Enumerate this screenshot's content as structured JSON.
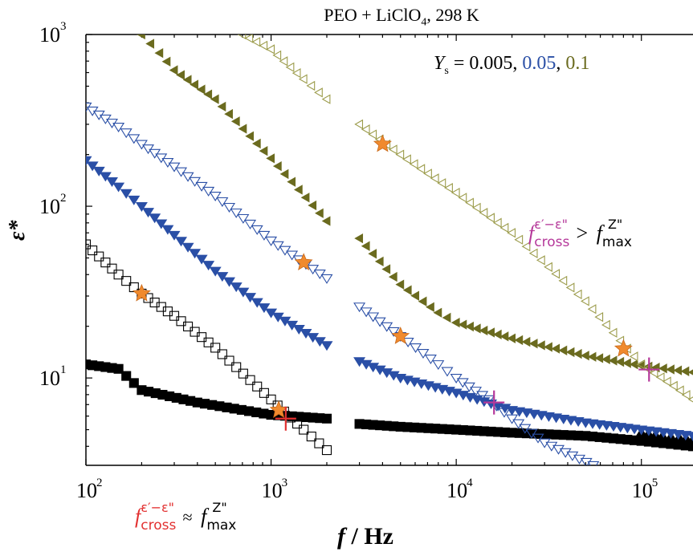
{
  "chart_data": {
    "type": "scatter",
    "title": "PEO + LiClO4, 298 K",
    "title_main": "PEO + LiClO",
    "title_sub": "4",
    "title_tail": ", 298 K",
    "xlabel": "f / Hz",
    "xlabel_var": "f",
    "xlabel_unit": " / Hz",
    "ylabel": "ε*",
    "x_scale": "log",
    "y_scale": "log",
    "xlim": [
      100,
      190000
    ],
    "ylim": [
      3.1,
      1000
    ],
    "x_tick_labels": [
      "10",
      "10",
      "10",
      "10"
    ],
    "x_tick_exponents": [
      "2",
      "3",
      "4",
      "5"
    ],
    "y_tick_labels": [
      "10",
      "10",
      "10"
    ],
    "y_tick_exponents": [
      "1",
      "2",
      "3"
    ],
    "grid": false,
    "legend_note": {
      "ys_symbol": "Y",
      "ys_sub": "s",
      "eq": " = 0.005, ",
      "values": [
        "0.005",
        "0.05",
        "0.1"
      ],
      "sep1": ", ",
      "v2": "0.05",
      "v3": "0.1",
      "colors": [
        "#000000",
        "#2a4fa6",
        "#6b6b1f"
      ]
    },
    "annotations": [
      {
        "f": "f",
        "sub": "cross",
        "sup": "ε′−ε\"",
        "rel": "≈",
        "f2": "f",
        "sub2": "max",
        "sup2": "Z\"",
        "color": "#e23030"
      },
      {
        "f": "f",
        "sub": "cross",
        "sup": "ε′−ε\"",
        "rel": ">",
        "f2": "f",
        "sub2": "max",
        "sup2": "Z\"",
        "color": "#b5389a"
      }
    ],
    "series": [
      {
        "ys": "0.005",
        "segment": "low-f",
        "filled": true,
        "marker": "square",
        "color": "#000000",
        "x": [
          100,
          150,
          200,
          400,
          1000,
          2000
        ],
        "y": [
          12,
          11.3,
          8.5,
          7.2,
          6.1,
          5.8
        ]
      },
      {
        "ys": "0.005",
        "segment": "low-f",
        "filled": false,
        "marker": "square",
        "color": "#000000",
        "x": [
          100,
          150,
          200,
          300,
          500,
          1000,
          1500,
          2000
        ],
        "y": [
          60,
          40,
          31,
          23,
          15,
          7.5,
          5,
          3.8
        ]
      },
      {
        "ys": "0.05",
        "segment": "low-f",
        "filled": true,
        "marker": "triangle-down",
        "color": "#2a4fa6",
        "x": [
          100,
          150,
          200,
          300,
          500,
          1000,
          2000
        ],
        "y": [
          185,
          130,
          100,
          68,
          42,
          24,
          15.5
        ]
      },
      {
        "ys": "0.05",
        "segment": "low-f",
        "filled": false,
        "marker": "triangle-down",
        "color": "#2a4fa6",
        "x": [
          100,
          150,
          200,
          300,
          500,
          1000,
          2000
        ],
        "y": [
          380,
          290,
          230,
          170,
          115,
          63,
          38
        ]
      },
      {
        "ys": "0.1",
        "segment": "low-f",
        "filled": true,
        "marker": "triangle-left",
        "color": "#6b6b1f",
        "x": [
          200,
          250,
          300,
          500,
          1000,
          2000
        ],
        "y": [
          1000,
          780,
          620,
          420,
          190,
          82
        ]
      },
      {
        "ys": "0.1",
        "segment": "low-f",
        "filled": false,
        "marker": "triangle-left",
        "color": "#9b9b4a",
        "x": [
          700,
          1000,
          1500,
          2000
        ],
        "y": [
          1000,
          820,
          550,
          420
        ]
      },
      {
        "ys": "0.005",
        "segment": "high-f",
        "filled": true,
        "marker": "square",
        "color": "#000000",
        "x": [
          3000,
          5000,
          10000,
          20000,
          50000,
          100000,
          190000
        ],
        "y": [
          5.4,
          5.2,
          5.0,
          4.8,
          4.6,
          4.3,
          4.0
        ]
      },
      {
        "ys": "0.005",
        "segment": "high-f",
        "filled": true,
        "marker": "triangle-up",
        "color": "#000000",
        "x": [
          100000,
          130000,
          160000,
          190000
        ],
        "y": [
          4.8,
          4.6,
          4.5,
          4.4
        ]
      },
      {
        "ys": "0.05",
        "segment": "high-f",
        "filled": true,
        "marker": "triangle-down",
        "color": "#2a4fa6",
        "x": [
          3000,
          5000,
          10000,
          20000,
          50000,
          100000,
          190000
        ],
        "y": [
          12.5,
          10,
          8.2,
          6.5,
          5.5,
          5.0,
          4.6
        ]
      },
      {
        "ys": "0.05",
        "segment": "high-f",
        "filled": false,
        "marker": "triangle-down",
        "color": "#2a4fa6",
        "x": [
          3000,
          5000,
          8000,
          10000,
          15000,
          20000,
          30000,
          55000
        ],
        "y": [
          26,
          17.5,
          12,
          10,
          7.5,
          5.8,
          4.2,
          3.1
        ]
      },
      {
        "ys": "0.1",
        "segment": "high-f",
        "filled": true,
        "marker": "triangle-left",
        "color": "#6b6b1f",
        "x": [
          3000,
          5000,
          8000,
          10000,
          20000,
          50000,
          100000,
          190000
        ],
        "y": [
          65,
          35,
          24,
          21,
          17,
          13.5,
          11.8,
          10.8
        ]
      },
      {
        "ys": "0.1",
        "segment": "high-f",
        "filled": false,
        "marker": "triangle-left",
        "color": "#9b9b4a",
        "x": [
          3000,
          5000,
          10000,
          20000,
          50000,
          100000,
          150000,
          190000
        ],
        "y": [
          300,
          200,
          120,
          70,
          28,
          12,
          9,
          7.5
        ]
      }
    ],
    "stars": {
      "color": "#f08a2e",
      "points": [
        {
          "x": 200,
          "y": 31
        },
        {
          "x": 1100,
          "y": 6.5
        },
        {
          "x": 1500,
          "y": 47
        },
        {
          "x": 4000,
          "y": 230
        },
        {
          "x": 5000,
          "y": 17.5
        },
        {
          "x": 80000,
          "y": 14.8
        }
      ]
    },
    "crosses": [
      {
        "x": 1200,
        "y": 5.8,
        "color": "#e23030"
      },
      {
        "x": 16000,
        "y": 7.2,
        "color": "#b5389a"
      },
      {
        "x": 110000,
        "y": 11.2,
        "color": "#b5389a"
      }
    ]
  }
}
